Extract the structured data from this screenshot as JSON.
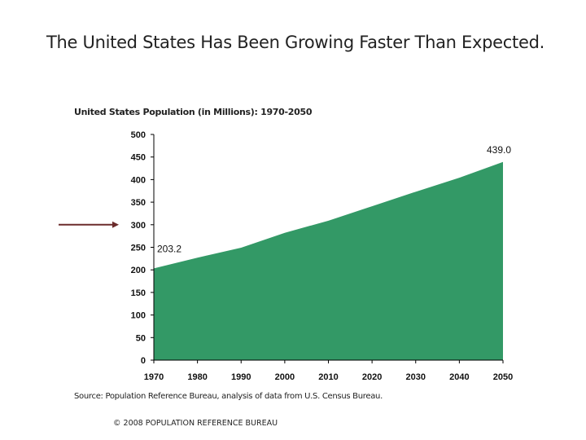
{
  "title": "The United States Has Been Growing Faster Than Expected.",
  "source": "Source: Population Reference Bureau, analysis of data from U.S. Census Bureau.",
  "copyright": "© 2008 POPULATION REFERENCE BUREAU",
  "colors": {
    "area": "#339966",
    "arrow": "#6b2b2b"
  },
  "annotation": {
    "type": "arrow",
    "points_to_y_value": 300
  },
  "chart_data": {
    "type": "area",
    "title": "United States Population (in Millions): 1970-2050",
    "x": [
      1970,
      1980,
      1990,
      2000,
      2010,
      2020,
      2030,
      2040,
      2050
    ],
    "values": [
      203.2,
      227,
      249,
      282,
      309,
      341,
      373,
      404,
      439.0
    ],
    "xlim": [
      1970,
      2050
    ],
    "ylim": [
      0,
      500
    ],
    "xticks": [
      "1970",
      "1980",
      "1990",
      "2000",
      "2010",
      "2020",
      "2030",
      "2040",
      "2050"
    ],
    "yticks": [
      "0",
      "50",
      "100",
      "150",
      "200",
      "250",
      "300",
      "350",
      "400",
      "450",
      "500"
    ],
    "data_labels": [
      {
        "x": 1970,
        "text": "203.2"
      },
      {
        "x": 2050,
        "text": "439.0"
      }
    ],
    "grid": false,
    "legend": "none"
  }
}
